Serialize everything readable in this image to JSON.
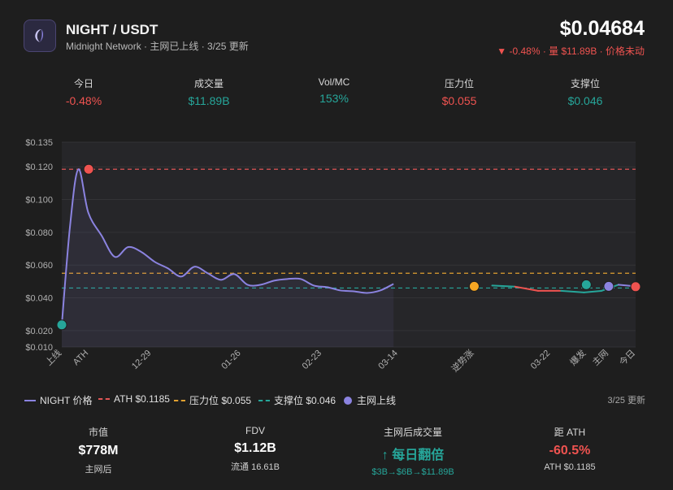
{
  "header": {
    "pair": "NIGHT / USDT",
    "subtitle": "Midnight Network · 主网已上线 · 3/25 更新",
    "price": "$0.04684",
    "change": "▼ -0.48% · 量 $11.89B · 价格未动"
  },
  "stats": [
    {
      "label": "今日",
      "value": "-0.48%",
      "color": "#ef5350"
    },
    {
      "label": "成交量",
      "value": "$11.89B",
      "color": "#26a69a"
    },
    {
      "label": "Vol/MC",
      "value": "153%",
      "color": "#26a69a"
    },
    {
      "label": "压力位",
      "value": "$0.055",
      "color": "#ef5350"
    },
    {
      "label": "支撑位",
      "value": "$0.046",
      "color": "#26a69a"
    }
  ],
  "chart_data": {
    "type": "line",
    "title": "NIGHT 价格",
    "ylim": [
      0.01,
      0.135
    ],
    "yticks": [
      "$0.135",
      "$0.120",
      "$0.100",
      "$0.080",
      "$0.060",
      "$0.040",
      "$0.020",
      "$0.010"
    ],
    "ytick_values": [
      0.135,
      0.12,
      0.1,
      0.08,
      0.06,
      0.04,
      0.02,
      0.01
    ],
    "x": [
      0,
      2.5,
      5,
      8,
      12,
      16,
      20,
      24,
      28,
      32,
      36,
      40,
      44,
      48,
      52,
      56,
      60,
      64,
      68,
      72,
      76,
      80,
      84,
      88,
      92,
      96,
      100
    ],
    "series": [
      {
        "name": "NIGHT 价格",
        "values": [
          0.0235,
          0.084,
          0.1185,
          0.092,
          0.078,
          0.065,
          0.071,
          0.068,
          0.062,
          0.058,
          0.053,
          0.059,
          0.055,
          0.051,
          0.0545,
          0.048,
          0.048,
          0.0505,
          0.0515,
          0.0515,
          0.0475,
          0.0465,
          0.0445,
          0.044,
          0.043,
          0.0445,
          0.0485
        ]
      }
    ],
    "tail_x": [
      75,
      79,
      83,
      87,
      91,
      94,
      97,
      100
    ],
    "tail_values": [
      0.0475,
      0.0468,
      0.0443,
      0.0443,
      0.0433,
      0.0442,
      0.048,
      0.047
    ],
    "tail_colors": [
      "#26a69a",
      "#ef5350",
      "#ef5350",
      "#26a69a",
      "#26a69a",
      "#26a69a",
      "#8b83e0",
      "#8b83e0"
    ],
    "xticks": [
      {
        "label": "上线",
        "x": 0
      },
      {
        "label": "ATH",
        "x": 6
      },
      {
        "label": "12-29",
        "x": 20
      },
      {
        "label": "01-26",
        "x": 40
      },
      {
        "label": "02-23",
        "x": 58
      },
      {
        "label": "03-14",
        "x": 75
      },
      {
        "label": "逆势涨",
        "x": 92
      },
      {
        "label": "03-22",
        "x": 109
      },
      {
        "label": "爆发",
        "x": 117
      },
      {
        "label": "主网",
        "x": 122
      },
      {
        "label": "今日",
        "x": 128
      }
    ],
    "reference_lines": [
      {
        "name": "ATH $0.1185",
        "value": 0.1185,
        "color": "#e05555"
      },
      {
        "name": "压力位 $0.055",
        "value": 0.055,
        "color": "#e0a030"
      },
      {
        "name": "支撑位 $0.046",
        "value": 0.046,
        "color": "#26a69a"
      }
    ],
    "markers": [
      {
        "name": "上线",
        "x": 0,
        "value": 0.0235,
        "color": "#26a69a"
      },
      {
        "name": "ATH",
        "x": 6,
        "value": 0.1185,
        "color": "#ef5350"
      },
      {
        "name": "逆势涨",
        "x": 92,
        "value": 0.047,
        "color": "#f5a623"
      },
      {
        "name": "爆发",
        "x": 117,
        "value": 0.048,
        "color": "#26a69a"
      },
      {
        "name": "主网",
        "x": 122,
        "value": 0.047,
        "color": "#8b83e0"
      },
      {
        "name": "今日",
        "x": 128,
        "value": 0.0468,
        "color": "#ef5350"
      }
    ]
  },
  "legend": {
    "items": [
      {
        "label": "NIGHT 价格",
        "kind": "line",
        "color": "#8b83e0"
      },
      {
        "label": "ATH $0.1185",
        "kind": "dash",
        "color": "#e05555"
      },
      {
        "label": "压力位 $0.055",
        "kind": "dash",
        "color": "#e0a030"
      },
      {
        "label": "支撑位 $0.046",
        "kind": "dash",
        "color": "#26a69a"
      },
      {
        "label": "主网上线",
        "kind": "dot",
        "color": "#8b83e0"
      }
    ],
    "updated": "3/25 更新"
  },
  "bottom": [
    {
      "label": "市值",
      "value": "$778M",
      "sub": "主网后",
      "value_color": "#ffffff",
      "sub_color": "#d0d0d0"
    },
    {
      "label": "FDV",
      "value": "$1.12B",
      "sub": "流通 16.61B",
      "value_color": "#ffffff",
      "sub_color": "#d0d0d0"
    },
    {
      "label": "主网后成交量",
      "value": "↑ 每日翻倍",
      "sub": "$3B→$6B→$11.89B",
      "value_color": "#26a69a",
      "sub_color": "#26a69a"
    },
    {
      "label": "距 ATH",
      "value": "-60.5%",
      "sub": "ATH $0.1185",
      "value_color": "#ef5350",
      "sub_color": "#d0d0d0"
    }
  ]
}
